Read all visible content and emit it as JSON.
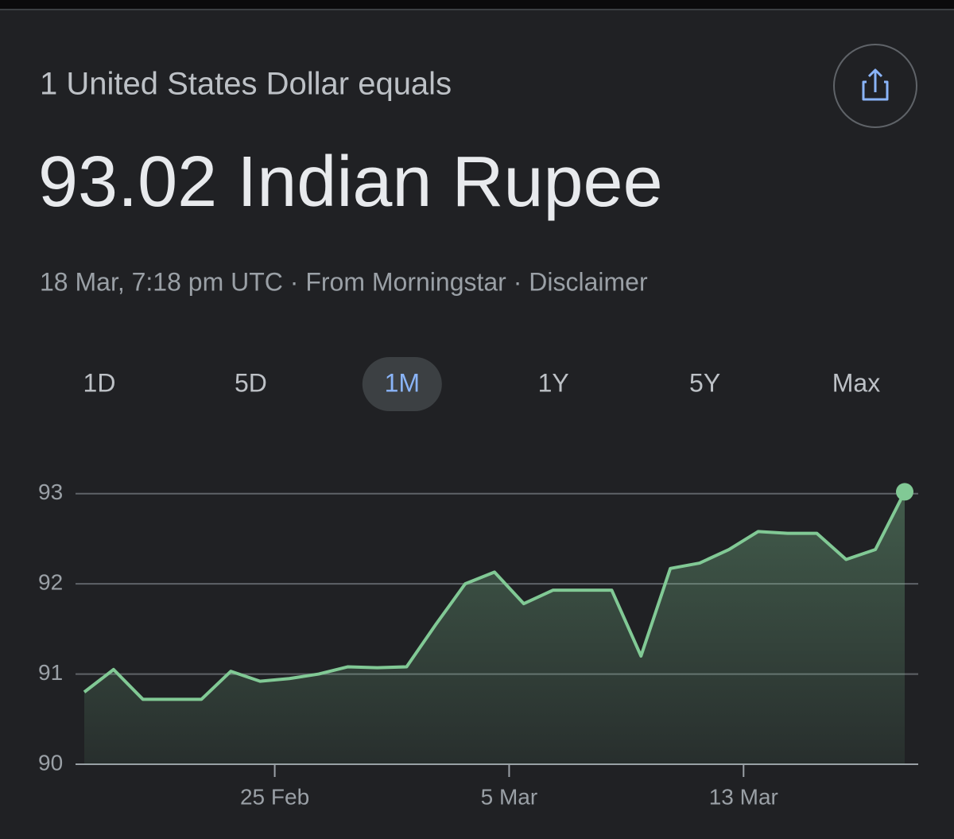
{
  "header": {
    "subtitle": "1 United States Dollar equals",
    "value_text": "93.02 Indian Rupee",
    "meta": "18 Mar, 7:18 pm UTC · From Morningstar · Disclaimer"
  },
  "tabs": [
    "1D",
    "5D",
    "1M",
    "1Y",
    "5Y",
    "Max"
  ],
  "selected_tab": 2,
  "chart_data": {
    "type": "area",
    "categories": [
      null,
      null,
      null,
      null,
      null,
      null,
      "25 Feb",
      null,
      null,
      null,
      null,
      null,
      null,
      null,
      "5 Mar",
      null,
      null,
      null,
      null,
      null,
      null,
      null,
      "13 Mar",
      null,
      null,
      null,
      null,
      null,
      null
    ],
    "values": [
      90.8,
      91.05,
      90.72,
      90.72,
      90.72,
      91.03,
      90.92,
      90.95,
      91.0,
      91.08,
      91.07,
      91.08,
      91.55,
      92.0,
      92.13,
      91.78,
      91.93,
      91.93,
      91.93,
      91.2,
      92.17,
      92.23,
      92.38,
      92.58,
      92.56,
      92.56,
      92.27,
      92.38,
      93.02
    ],
    "color": "#81c995",
    "ylim": [
      90,
      93.2
    ],
    "yticks": [
      90,
      91,
      92,
      93
    ],
    "grid": true
  }
}
